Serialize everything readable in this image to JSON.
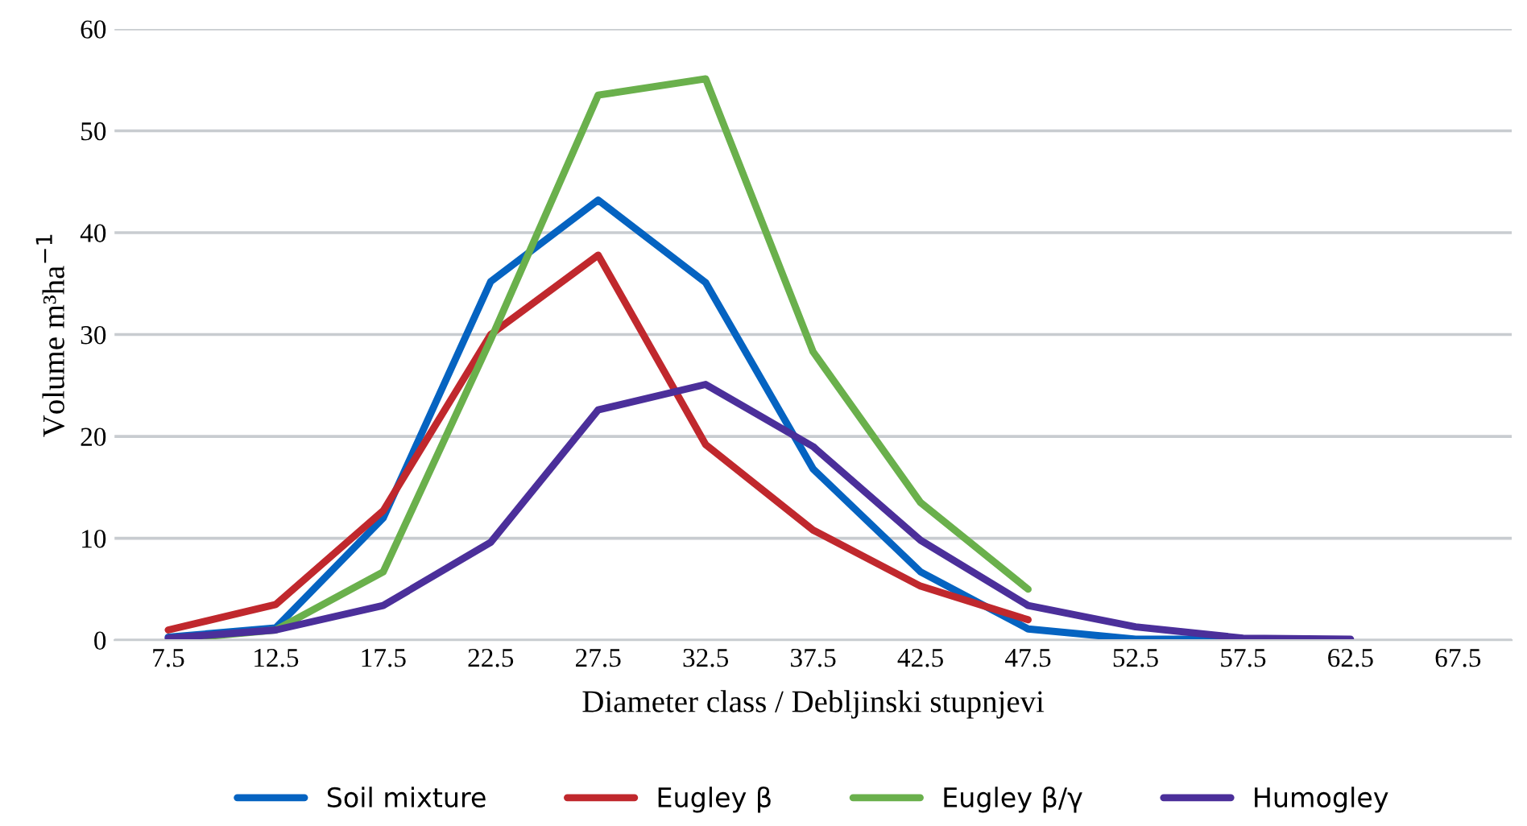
{
  "chart_data": {
    "type": "line",
    "xlabel": "Diameter class / Debljinski stupnjevi",
    "ylabel": "Volume m³ha$^{−1}$",
    "categories": [
      "7.5",
      "12.5",
      "17.5",
      "22.5",
      "27.5",
      "32.5",
      "37.5",
      "42.5",
      "47.5",
      "52.5",
      "57.5",
      "62.5",
      "67.5"
    ],
    "ylim": [
      0,
      60
    ],
    "yticks": [
      0,
      10,
      20,
      30,
      40,
      50,
      60
    ],
    "grid": "y",
    "legend": "bottom",
    "marker": "none",
    "line_style": "solid",
    "series": [
      {
        "name": "Soil mixture",
        "color": "#0563c1",
        "values": [
          0.3,
          1.2,
          12,
          35.2,
          43.2,
          35.1,
          16.8,
          6.7,
          1.1,
          0.1,
          0.1,
          null,
          null
        ]
      },
      {
        "name": "Eugley β",
        "color": "#c0282d",
        "values": [
          1,
          3.5,
          12.7,
          30,
          37.8,
          19.2,
          10.8,
          5.3,
          2,
          null,
          null,
          null,
          null
        ]
      },
      {
        "name": "Eugley β/γ",
        "color": "#6ab04c",
        "values": [
          0,
          1,
          6.7,
          29.5,
          53.5,
          55.1,
          28.3,
          13.5,
          5,
          null,
          null,
          null,
          null
        ]
      },
      {
        "name": "Humogley",
        "color": "#4b2f9a",
        "values": [
          0.2,
          1,
          3.4,
          9.6,
          22.6,
          25.1,
          19,
          9.8,
          3.4,
          1.3,
          0.2,
          0.1,
          null
        ]
      }
    ]
  }
}
